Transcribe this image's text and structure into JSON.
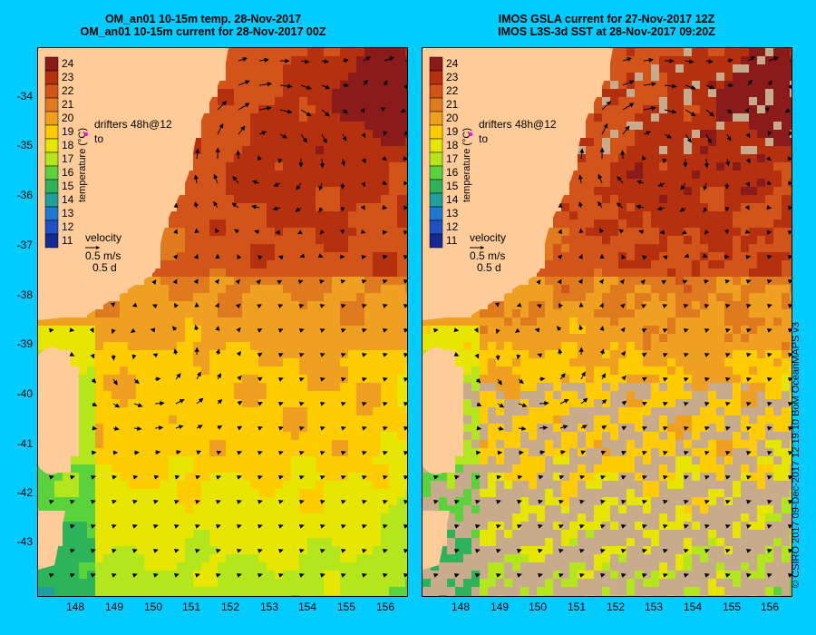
{
  "left": {
    "title_line1": "OM_an01 10-15m temp. 28-Nov-2017",
    "title_line2": "OM_an01 10-15m current for 28-Nov-2017 00Z"
  },
  "right": {
    "title_line1": "IMOS GSLA current for 27-Nov-2017 12Z",
    "title_line2": "IMOS L3S-3d SST at 28-Nov-2017 09:20Z"
  },
  "legend": {
    "colorbar_label": "temperature (°C)",
    "ticks": [
      "24",
      "23",
      "22",
      "21",
      "20",
      "19",
      "18",
      "17",
      "16",
      "15",
      "14",
      "13",
      "12",
      "11"
    ],
    "colors": [
      "#8b1a1a",
      "#b5300e",
      "#d2541a",
      "#e07a1e",
      "#f0a020",
      "#ffcc00",
      "#e6e600",
      "#b4e61e",
      "#5ad23c",
      "#2db45a",
      "#1ea0a0",
      "#1e78d2",
      "#1e50c8",
      "#142896"
    ],
    "drifters_text": "drifters 48h@12",
    "drifters_to": "to",
    "velocity_label": "velocity",
    "velocity_scale": "0.5 m/s",
    "velocity_time": "0.5 d"
  },
  "axes": {
    "lat_ticks": [
      "-34",
      "-35",
      "-36",
      "-37",
      "-38",
      "-39",
      "-40",
      "-41",
      "-42",
      "-43"
    ],
    "lon_ticks": [
      "148",
      "149",
      "150",
      "151",
      "152",
      "153",
      "154",
      "155",
      "156"
    ]
  },
  "colors": {
    "land": "#ffcc99",
    "background": "#00ccff",
    "cloud": "#c8aa8c",
    "arrow": "#000000",
    "drifter": "#ff00ff"
  },
  "credit": "© CSIRO 2017   09-Dec-2017 12:19:10 BoM OceanMAPS v3"
}
